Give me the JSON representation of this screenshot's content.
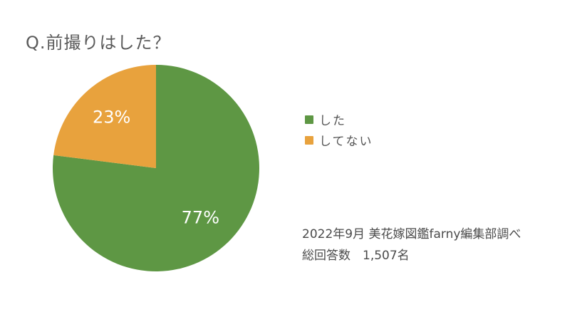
{
  "chart_data": {
    "type": "pie",
    "title": "Q.前撮りはした？",
    "categories": [
      "した",
      "してない"
    ],
    "values": [
      77,
      23
    ],
    "value_labels": [
      "77%",
      "23%"
    ],
    "colors": [
      "#5e9744",
      "#e8a23d"
    ],
    "legend_position": "right"
  },
  "source": {
    "line1": "2022年9月 美花嫁図鑑farny編集部調べ",
    "line2": "総回答数　1,507名"
  }
}
